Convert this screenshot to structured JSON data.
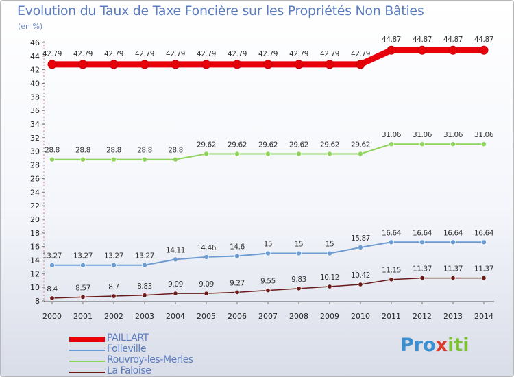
{
  "header": {
    "title": "Evolution du Taux de Taxe Foncière sur les Propriétés Non Bâties",
    "unit": "(en %)"
  },
  "logo": {
    "text": "Proxiti",
    "parts": [
      "Pro",
      "x",
      "iti"
    ]
  },
  "chart_data": {
    "type": "line",
    "title": "Evolution du Taux de Taxe Foncière sur les Propriétés Non Bâties",
    "ylabel": "(en %)",
    "xlabel": "",
    "x": [
      "2000",
      "2001",
      "2002",
      "2003",
      "2004",
      "2005",
      "2006",
      "2007",
      "2008",
      "2009",
      "2010",
      "2011",
      "2012",
      "2013",
      "2014"
    ],
    "ylim": [
      8,
      46
    ],
    "yticks": [
      8,
      10,
      12,
      14,
      16,
      18,
      20,
      22,
      24,
      26,
      28,
      30,
      32,
      34,
      36,
      38,
      40,
      42,
      44,
      46
    ],
    "grid": false,
    "legend_position": "bottom-left",
    "series": [
      {
        "name": "PAILLART",
        "color": "#e8000b",
        "labels": [
          "42.79",
          "42.79",
          "42.79",
          "42.79",
          "42.79",
          "42.79",
          "42.79",
          "42.79",
          "42.79",
          "42.79",
          "42.79",
          "44.87",
          "44.87",
          "44.87",
          "44.87"
        ],
        "values": [
          42.79,
          42.79,
          42.79,
          42.79,
          42.79,
          42.79,
          42.79,
          42.79,
          42.79,
          42.79,
          42.79,
          44.87,
          44.87,
          44.87,
          44.87
        ]
      },
      {
        "name": "Folleville",
        "color": "#6c9bd2",
        "labels": [
          "13.27",
          "13.27",
          "13.27",
          "13.27",
          "14.11",
          "14.46",
          "14.6",
          "15",
          "15",
          "15",
          "15.87",
          "16.64",
          "16.64",
          "16.64",
          "16.64"
        ],
        "values": [
          13.27,
          13.27,
          13.27,
          13.27,
          14.11,
          14.46,
          14.6,
          15,
          15,
          15,
          15.87,
          16.64,
          16.64,
          16.64,
          16.64
        ]
      },
      {
        "name": "Rouvroy-les-Merles",
        "color": "#8ed35a",
        "labels": [
          "28.8",
          "28.8",
          "28.8",
          "28.8",
          "28.8",
          "29.62",
          "29.62",
          "29.62",
          "29.62",
          "29.62",
          "29.62",
          "31.06",
          "31.06",
          "31.06",
          "31.06"
        ],
        "values": [
          28.8,
          28.8,
          28.8,
          28.8,
          28.8,
          29.62,
          29.62,
          29.62,
          29.62,
          29.62,
          29.62,
          31.06,
          31.06,
          31.06,
          31.06
        ]
      },
      {
        "name": "La Faloise",
        "color": "#6b1a1a",
        "labels": [
          "8.4",
          "8.57",
          "8.7",
          "8.83",
          "9.09",
          "9.09",
          "9.27",
          "9.55",
          "9.83",
          "10.12",
          "10.42",
          "11.15",
          "11.37",
          "11.37",
          "11.37"
        ],
        "values": [
          8.4,
          8.57,
          8.7,
          8.83,
          9.09,
          9.09,
          9.27,
          9.55,
          9.83,
          10.12,
          10.42,
          11.15,
          11.37,
          11.37,
          11.37
        ]
      }
    ]
  }
}
